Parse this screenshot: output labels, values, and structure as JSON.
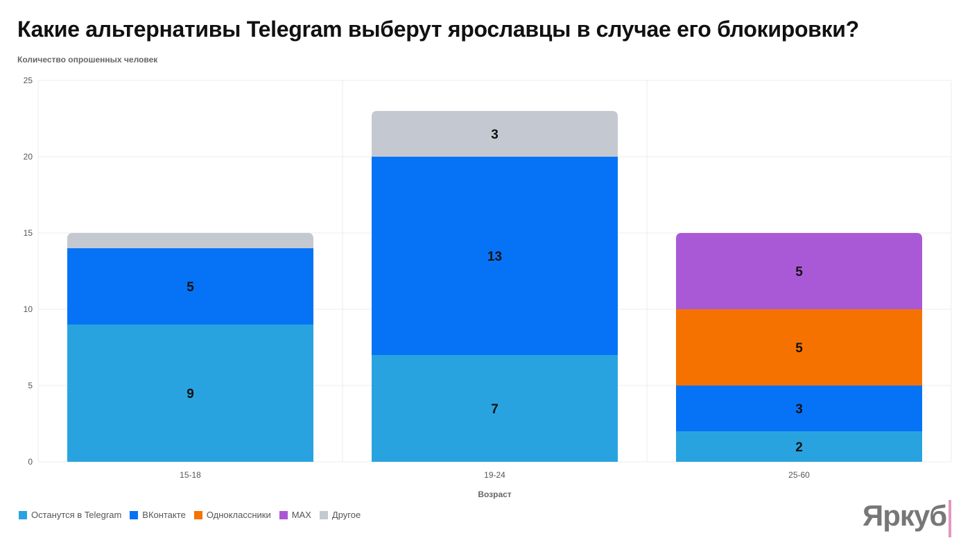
{
  "chart_data": {
    "type": "bar",
    "stacked": true,
    "title": "Какие альтернативы Telegram выберут ярославцы в случае его блокировки?",
    "ylabel": "Количество опрошенных человек",
    "xlabel": "Возраст",
    "categories": [
      "15-18",
      "19-24",
      "25-60"
    ],
    "ylim": [
      0,
      25
    ],
    "yticks": [
      0,
      5,
      10,
      15,
      20,
      25
    ],
    "grid": true,
    "legend_position": "bottom-left",
    "series": [
      {
        "name": "Останутся в Telegram",
        "color": "#29a3e0",
        "values": [
          9,
          7,
          2
        ],
        "labels": [
          "9",
          "7",
          "2"
        ]
      },
      {
        "name": "ВКонтакте",
        "color": "#0673f6",
        "values": [
          5,
          13,
          3
        ],
        "labels": [
          "5",
          "13",
          "3"
        ]
      },
      {
        "name": "Одноклассники",
        "color": "#f57200",
        "values": [
          0,
          0,
          5
        ],
        "labels": [
          "",
          "",
          "5"
        ]
      },
      {
        "name": "MAX",
        "color": "#aa59d6",
        "values": [
          0,
          0,
          5
        ],
        "labels": [
          "",
          "",
          "5"
        ]
      },
      {
        "name": "Другое",
        "color": "#c4c9d1",
        "values": [
          1,
          3,
          0
        ],
        "labels": [
          "",
          "3",
          ""
        ]
      }
    ]
  },
  "logo": "Яркуб"
}
